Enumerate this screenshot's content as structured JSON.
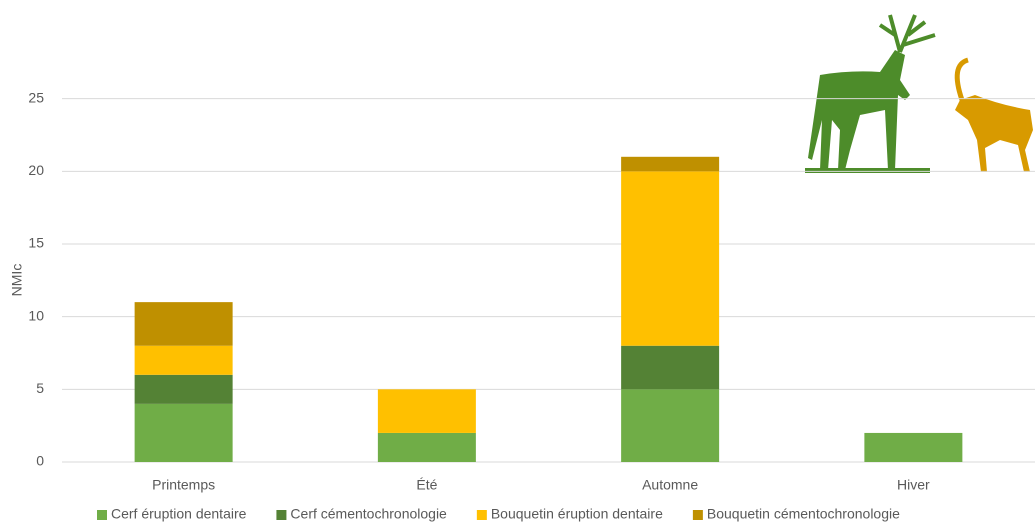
{
  "chart_data": {
    "type": "stacked_bar",
    "y_label": "NMIc",
    "categories": [
      "Printemps",
      "Été",
      "Automne",
      "Hiver"
    ],
    "series": [
      {
        "name": "Cerf éruption dentaire",
        "color": "#70ad47",
        "values": [
          4,
          2,
          5,
          2
        ]
      },
      {
        "name": "Cerf cémentochronologie",
        "color": "#548235",
        "values": [
          2,
          0,
          3,
          0
        ]
      },
      {
        "name": "Bouquetin éruption dentaire",
        "color": "#ffc000",
        "values": [
          2,
          3,
          12,
          0
        ]
      },
      {
        "name": "Bouquetin cémentochronologie",
        "color": "#bf9000",
        "values": [
          3,
          0,
          1,
          0
        ]
      }
    ],
    "ylim": [
      0,
      30
    ],
    "yticks": [
      0,
      5,
      10,
      15,
      20,
      25
    ],
    "grid": true,
    "legend": "bottom"
  }
}
